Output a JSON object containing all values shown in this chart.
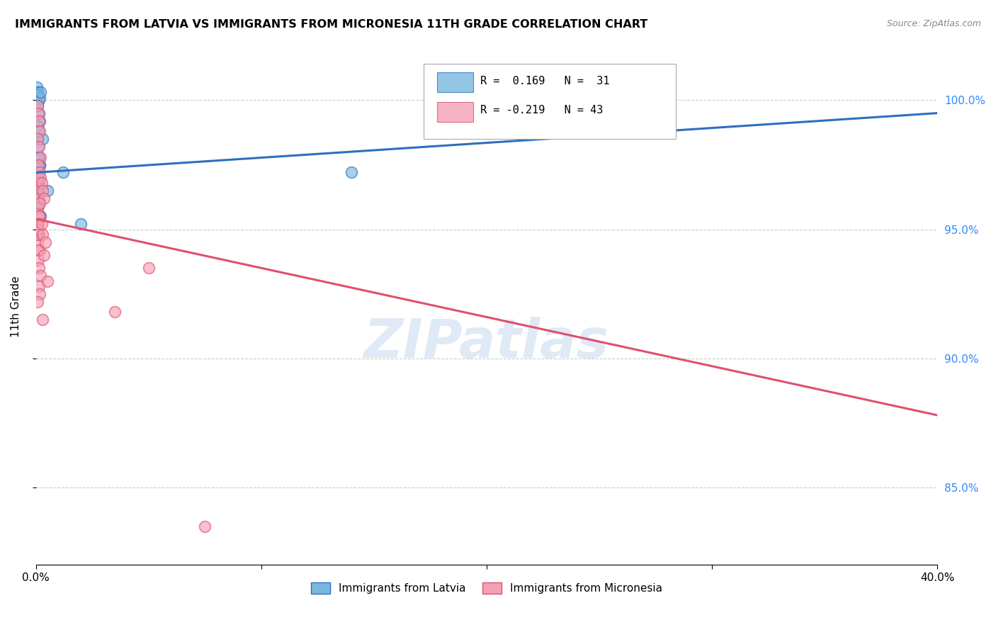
{
  "title": "IMMIGRANTS FROM LATVIA VS IMMIGRANTS FROM MICRONESIA 11TH GRADE CORRELATION CHART",
  "source": "Source: ZipAtlas.com",
  "ylabel": "11th Grade",
  "r_latvia": 0.169,
  "n_latvia": 31,
  "r_micronesia": -0.219,
  "n_micronesia": 43,
  "color_latvia": "#7ab8e0",
  "color_micronesia": "#f4a0b5",
  "color_line_latvia": "#2e6fbf",
  "color_line_micronesia": "#e05070",
  "watermark": "ZIPatlas",
  "xlim": [
    0.0,
    40.0
  ],
  "ylim": [
    82.0,
    102.0
  ],
  "yticks": [
    85.0,
    90.0,
    95.0,
    100.0
  ],
  "ytick_labels": [
    "85.0%",
    "90.0%",
    "95.0%",
    "100.0%"
  ],
  "latvia_line_x": [
    0.0,
    40.0
  ],
  "latvia_line_y": [
    97.2,
    99.5
  ],
  "micronesia_line_x": [
    0.0,
    40.0
  ],
  "micronesia_line_y": [
    95.4,
    87.8
  ],
  "latvia_x": [
    0.05,
    0.08,
    0.1,
    0.12,
    0.15,
    0.18,
    0.08,
    0.12,
    0.15,
    0.08,
    0.1,
    0.08,
    0.1,
    0.12,
    0.15,
    0.08,
    0.1,
    0.12,
    0.08,
    0.1,
    0.12,
    0.08,
    1.2,
    0.3,
    0.5,
    0.2,
    2.0,
    0.08,
    0.1,
    0.15,
    14.0
  ],
  "latvia_y": [
    100.5,
    100.3,
    100.2,
    100.0,
    100.1,
    100.3,
    99.8,
    99.5,
    99.2,
    99.0,
    98.8,
    98.5,
    98.2,
    97.8,
    97.5,
    97.2,
    97.0,
    96.8,
    96.5,
    96.3,
    96.0,
    95.8,
    97.2,
    98.5,
    96.5,
    95.5,
    95.2,
    94.8,
    97.8,
    97.5,
    97.2
  ],
  "micronesia_x": [
    0.08,
    0.1,
    0.12,
    0.15,
    0.08,
    0.12,
    0.18,
    0.1,
    0.15,
    0.08,
    0.1,
    0.12,
    0.08,
    0.15,
    0.1,
    0.12,
    0.08,
    0.1,
    0.15,
    0.12,
    0.08,
    0.1,
    0.2,
    0.25,
    0.3,
    0.35,
    0.08,
    0.1,
    0.12,
    0.15,
    0.2,
    0.25,
    0.3,
    0.12,
    0.15,
    0.08,
    0.5,
    0.4,
    0.35,
    5.0,
    3.5,
    7.5,
    0.3
  ],
  "micronesia_y": [
    99.8,
    99.5,
    99.2,
    98.8,
    98.5,
    98.2,
    97.8,
    97.5,
    97.2,
    96.8,
    96.5,
    96.2,
    95.8,
    95.5,
    95.2,
    94.8,
    94.5,
    94.8,
    94.2,
    95.5,
    95.2,
    95.0,
    97.0,
    96.8,
    96.5,
    96.2,
    94.2,
    93.8,
    93.5,
    96.0,
    93.2,
    95.2,
    94.8,
    92.8,
    92.5,
    92.2,
    93.0,
    94.5,
    94.0,
    93.5,
    91.8,
    83.5,
    91.5
  ]
}
